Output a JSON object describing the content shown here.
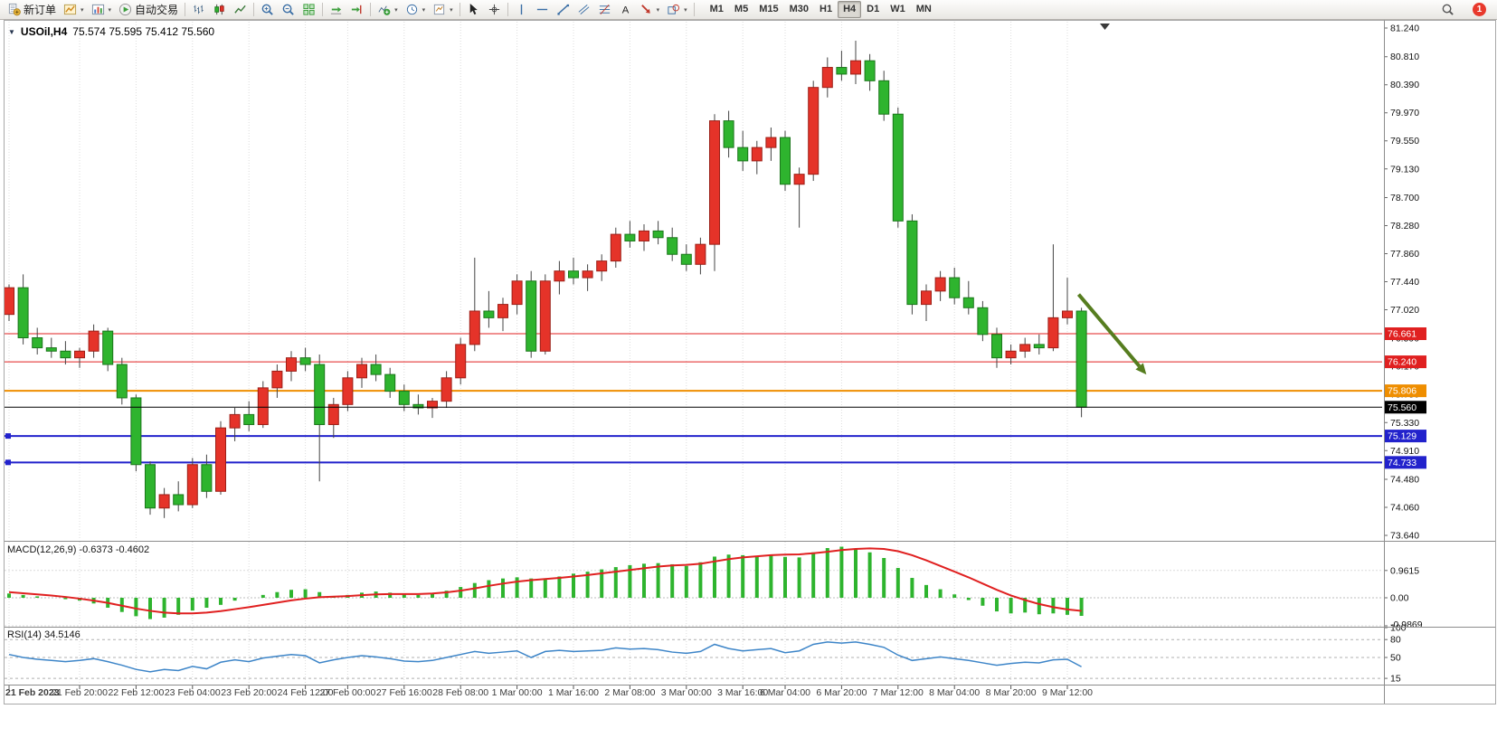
{
  "app": {
    "toolbar": {
      "items": [
        {
          "name": "new-order",
          "icon": "new-order",
          "label": "新订单"
        },
        {
          "name": "new-chart",
          "icon": "new-chart",
          "dropdown": true
        },
        {
          "name": "profiles",
          "icon": "profiles",
          "dropdown": true
        },
        {
          "name": "auto-trading",
          "icon": "auto-trading",
          "label": "自动交易"
        },
        {
          "sep": true
        },
        {
          "name": "chart-bars",
          "icon": "chart-bars"
        },
        {
          "name": "chart-candles",
          "icon": "chart-candles"
        },
        {
          "name": "chart-line",
          "icon": "chart-line"
        },
        {
          "sep": true
        },
        {
          "name": "zoom-in",
          "icon": "zoom-in"
        },
        {
          "name": "zoom-out",
          "icon": "zoom-out"
        },
        {
          "name": "tile-windows",
          "icon": "tile-windows"
        },
        {
          "sep": true
        },
        {
          "name": "auto-scroll",
          "icon": "auto-scroll"
        },
        {
          "name": "chart-shift",
          "icon": "chart-shift"
        },
        {
          "sep": true
        },
        {
          "name": "indicators",
          "icon": "indicators",
          "dropdown": true
        },
        {
          "name": "periods",
          "icon": "periods",
          "dropdown": true
        },
        {
          "name": "templates",
          "icon": "templates",
          "dropdown": true
        },
        {
          "sep": true
        },
        {
          "name": "cursor",
          "icon": "cursor"
        },
        {
          "name": "crosshair",
          "icon": "crosshair"
        },
        {
          "sep": true
        },
        {
          "name": "vertical-line",
          "icon": "vertical-line"
        },
        {
          "name": "horizontal-line",
          "icon": "horizontal-line"
        },
        {
          "name": "trendline",
          "icon": "trendline"
        },
        {
          "name": "equidistant-channel",
          "icon": "channel"
        },
        {
          "name": "fibonacci",
          "icon": "fibonacci"
        },
        {
          "name": "text-label",
          "icon": "text"
        },
        {
          "name": "arrows",
          "icon": "arrow-symbol",
          "dropdown": true
        },
        {
          "name": "shapes",
          "icon": "shapes",
          "dropdown": true
        },
        {
          "sep": true
        }
      ],
      "timeframes": [
        "M1",
        "M5",
        "M15",
        "M30",
        "H1",
        "H4",
        "D1",
        "W1",
        "MN"
      ],
      "active_timeframe": "H4",
      "notification_count": "1"
    },
    "chart_header": {
      "symbol_period": "USOil,H4",
      "ohlc": "75.574 75.595 75.412 75.560"
    }
  },
  "chart_data": {
    "type": "candlestick",
    "symbol": "USOil",
    "period": "H4",
    "y_axis": {
      "max": 81.24,
      "min": 73.64,
      "tick_labels": [
        "81.240",
        "80.810",
        "80.390",
        "79.970",
        "79.550",
        "79.130",
        "78.700",
        "78.280",
        "77.860",
        "77.440",
        "77.020",
        "76.590",
        "76.170",
        "75.750",
        "75.330",
        "74.910",
        "74.480",
        "74.060",
        "73.640"
      ]
    },
    "x_axis": {
      "labels": [
        {
          "i": 0,
          "t": "21 Feb 2023"
        },
        {
          "i": 5,
          "t": "21 Feb 20:00"
        },
        {
          "i": 9,
          "t": "22 Feb 12:00"
        },
        {
          "i": 13,
          "t": "23 Feb 04:00"
        },
        {
          "i": 17,
          "t": "23 Feb 20:00"
        },
        {
          "i": 21,
          "t": "24 Feb 12:00"
        },
        {
          "i": 24,
          "t": "27 Feb 00:00"
        },
        {
          "i": 28,
          "t": "27 Feb 16:00"
        },
        {
          "i": 32,
          "t": "28 Feb 08:00"
        },
        {
          "i": 36,
          "t": "1 Mar 00:00"
        },
        {
          "i": 40,
          "t": "1 Mar 16:00"
        },
        {
          "i": 44,
          "t": "2 Mar 08:00"
        },
        {
          "i": 48,
          "t": "3 Mar 00:00"
        },
        {
          "i": 52,
          "t": "3 Mar 16:00"
        },
        {
          "i": 55,
          "t": "6 Mar 04:00"
        },
        {
          "i": 59,
          "t": "6 Mar 20:00"
        },
        {
          "i": 63,
          "t": "7 Mar 12:00"
        },
        {
          "i": 67,
          "t": "8 Mar 04:00"
        },
        {
          "i": 71,
          "t": "8 Mar 20:00"
        },
        {
          "i": 75,
          "t": "9 Mar 12:00"
        }
      ]
    },
    "candles": [
      [
        76.95,
        77.4,
        76.85,
        77.35
      ],
      [
        77.35,
        77.55,
        76.5,
        76.6
      ],
      [
        76.6,
        76.75,
        76.35,
        76.45
      ],
      [
        76.45,
        76.6,
        76.3,
        76.4
      ],
      [
        76.4,
        76.55,
        76.2,
        76.3
      ],
      [
        76.3,
        76.45,
        76.15,
        76.4
      ],
      [
        76.4,
        76.8,
        76.3,
        76.7
      ],
      [
        76.7,
        76.75,
        76.1,
        76.2
      ],
      [
        76.2,
        76.3,
        75.6,
        75.7
      ],
      [
        75.7,
        75.75,
        74.6,
        74.7
      ],
      [
        74.7,
        74.75,
        73.95,
        74.05
      ],
      [
        74.05,
        74.35,
        73.9,
        74.25
      ],
      [
        74.25,
        74.45,
        74.0,
        74.1
      ],
      [
        74.1,
        74.8,
        74.05,
        74.7
      ],
      [
        74.7,
        74.85,
        74.2,
        74.3
      ],
      [
        74.3,
        75.35,
        74.25,
        75.25
      ],
      [
        75.25,
        75.55,
        75.05,
        75.45
      ],
      [
        75.45,
        75.65,
        75.2,
        75.3
      ],
      [
        75.3,
        75.95,
        75.25,
        75.85
      ],
      [
        75.85,
        76.2,
        75.7,
        76.1
      ],
      [
        76.1,
        76.4,
        75.95,
        76.3
      ],
      [
        76.3,
        76.45,
        76.1,
        76.2
      ],
      [
        76.2,
        76.35,
        74.45,
        75.3
      ],
      [
        75.3,
        75.7,
        75.1,
        75.6
      ],
      [
        75.6,
        76.1,
        75.5,
        76.0
      ],
      [
        76.0,
        76.3,
        75.85,
        76.2
      ],
      [
        76.2,
        76.35,
        75.95,
        76.05
      ],
      [
        76.05,
        76.15,
        75.7,
        75.8
      ],
      [
        75.8,
        75.9,
        75.5,
        75.6
      ],
      [
        75.6,
        75.75,
        75.45,
        75.55
      ],
      [
        75.55,
        75.7,
        75.4,
        75.65
      ],
      [
        75.65,
        76.1,
        75.55,
        76.0
      ],
      [
        76.0,
        76.6,
        75.9,
        76.5
      ],
      [
        76.5,
        77.8,
        76.4,
        77.0
      ],
      [
        77.0,
        77.3,
        76.75,
        76.9
      ],
      [
        76.9,
        77.2,
        76.7,
        77.1
      ],
      [
        77.1,
        77.55,
        76.95,
        77.45
      ],
      [
        77.45,
        77.6,
        76.3,
        76.4
      ],
      [
        76.4,
        77.55,
        76.35,
        77.45
      ],
      [
        77.45,
        77.75,
        77.25,
        77.6
      ],
      [
        77.6,
        77.8,
        77.4,
        77.5
      ],
      [
        77.5,
        77.7,
        77.3,
        77.6
      ],
      [
        77.6,
        77.85,
        77.45,
        77.75
      ],
      [
        77.75,
        78.25,
        77.65,
        78.15
      ],
      [
        78.15,
        78.35,
        77.95,
        78.05
      ],
      [
        78.05,
        78.3,
        77.9,
        78.2
      ],
      [
        78.2,
        78.35,
        78.0,
        78.1
      ],
      [
        78.1,
        78.25,
        77.75,
        77.85
      ],
      [
        77.85,
        78.0,
        77.6,
        77.7
      ],
      [
        77.7,
        78.1,
        77.55,
        78.0
      ],
      [
        78.0,
        79.95,
        77.6,
        79.85
      ],
      [
        79.85,
        80.0,
        79.3,
        79.45
      ],
      [
        79.45,
        79.7,
        79.1,
        79.25
      ],
      [
        79.25,
        79.55,
        79.05,
        79.45
      ],
      [
        79.45,
        79.75,
        79.25,
        79.6
      ],
      [
        79.6,
        79.7,
        78.8,
        78.9
      ],
      [
        78.9,
        79.15,
        78.25,
        79.05
      ],
      [
        79.05,
        80.45,
        78.95,
        80.35
      ],
      [
        80.35,
        80.8,
        80.2,
        80.65
      ],
      [
        80.65,
        80.9,
        80.45,
        80.55
      ],
      [
        80.55,
        81.05,
        80.4,
        80.75
      ],
      [
        80.75,
        80.85,
        80.3,
        80.45
      ],
      [
        80.45,
        80.6,
        79.85,
        79.95
      ],
      [
        79.95,
        80.05,
        78.25,
        78.35
      ],
      [
        78.35,
        78.45,
        76.95,
        77.1
      ],
      [
        77.1,
        77.4,
        76.85,
        77.3
      ],
      [
        77.3,
        77.6,
        77.15,
        77.5
      ],
      [
        77.5,
        77.65,
        77.1,
        77.2
      ],
      [
        77.2,
        77.45,
        76.95,
        77.05
      ],
      [
        77.05,
        77.15,
        76.55,
        76.65
      ],
      [
        76.65,
        76.75,
        76.15,
        76.3
      ],
      [
        76.3,
        76.5,
        76.2,
        76.4
      ],
      [
        76.4,
        76.6,
        76.3,
        76.5
      ],
      [
        76.5,
        76.65,
        76.35,
        76.45
      ],
      [
        76.45,
        78.0,
        76.4,
        76.9
      ],
      [
        76.9,
        77.5,
        76.8,
        77.0
      ],
      [
        77.0,
        77.05,
        75.41,
        75.56
      ]
    ],
    "colors": {
      "up": "#e53329",
      "up_border": "#9c1f17",
      "down": "#2eb42e",
      "down_border": "#1b761b",
      "wick": "#444444",
      "macd_hist": "#2eb42e",
      "macd_signal": "#e02020",
      "rsi": "#3d85c8",
      "grid": "#dcdcdc",
      "arrow": "#567d1f"
    },
    "objects": {
      "hlines": [
        {
          "price": 76.661,
          "label": "76.661",
          "color": "#e02020",
          "width": 1,
          "handle": false
        },
        {
          "price": 76.24,
          "label": "76.240",
          "color": "#e02020",
          "width": 1,
          "handle": false
        },
        {
          "price": 75.806,
          "label": "75.806",
          "color": "#ef8e00",
          "width": 2,
          "handle": false
        },
        {
          "price": 75.129,
          "label": "75.129",
          "color": "#2222cc",
          "width": 2,
          "handle": true
        },
        {
          "price": 74.733,
          "label": "74.733",
          "color": "#2222cc",
          "width": 2,
          "handle": true
        }
      ],
      "bid": {
        "price": 75.56,
        "label": "75.560",
        "color": "#000000"
      },
      "arrow": {
        "from_i": 75.8,
        "from_price": 77.25,
        "to_i": 80.6,
        "to_price": 76.05,
        "color": "#567d1f"
      }
    },
    "macd": {
      "label": "MACD(12,26,9) -0.6373 -0.4602",
      "ticks": [
        {
          "v": 0.9615,
          "label": "0.9615"
        },
        {
          "v": 0,
          "label": "0.00"
        },
        {
          "v": -0.9869,
          "label": "-0.9869"
        }
      ],
      "histogram": [
        0.15,
        0.1,
        0.05,
        0.0,
        -0.05,
        -0.1,
        -0.2,
        -0.35,
        -0.5,
        -0.65,
        -0.75,
        -0.7,
        -0.6,
        -0.45,
        -0.35,
        -0.25,
        -0.1,
        0.0,
        0.1,
        0.2,
        0.28,
        0.3,
        0.2,
        0.05,
        0.1,
        0.18,
        0.22,
        0.18,
        0.12,
        0.1,
        0.15,
        0.25,
        0.38,
        0.52,
        0.62,
        0.68,
        0.72,
        0.68,
        0.66,
        0.75,
        0.85,
        0.92,
        1.0,
        1.08,
        1.15,
        1.2,
        1.22,
        1.18,
        1.12,
        1.25,
        1.45,
        1.52,
        1.5,
        1.46,
        1.5,
        1.44,
        1.42,
        1.6,
        1.75,
        1.8,
        1.72,
        1.6,
        1.4,
        1.05,
        0.7,
        0.45,
        0.3,
        0.12,
        -0.08,
        -0.28,
        -0.48,
        -0.55,
        -0.52,
        -0.58,
        -0.55,
        -0.6,
        -0.6373
      ],
      "signal": [
        0.2,
        0.16,
        0.12,
        0.08,
        0.03,
        -0.03,
        -0.1,
        -0.18,
        -0.28,
        -0.38,
        -0.46,
        -0.52,
        -0.55,
        -0.55,
        -0.52,
        -0.47,
        -0.4,
        -0.33,
        -0.25,
        -0.17,
        -0.09,
        -0.03,
        0.02,
        0.04,
        0.06,
        0.09,
        0.12,
        0.13,
        0.13,
        0.13,
        0.15,
        0.19,
        0.25,
        0.33,
        0.42,
        0.5,
        0.57,
        0.62,
        0.66,
        0.7,
        0.75,
        0.8,
        0.86,
        0.92,
        0.98,
        1.04,
        1.1,
        1.14,
        1.16,
        1.2,
        1.28,
        1.36,
        1.42,
        1.46,
        1.5,
        1.52,
        1.53,
        1.57,
        1.62,
        1.68,
        1.72,
        1.74,
        1.72,
        1.64,
        1.5,
        1.32,
        1.12,
        0.92,
        0.72,
        0.5,
        0.28,
        0.08,
        -0.08,
        -0.22,
        -0.33,
        -0.41,
        -0.4602
      ]
    },
    "rsi": {
      "label": "RSI(14) 34.5146",
      "ticks": [
        {
          "v": 100,
          "label": "100"
        },
        {
          "v": 80,
          "label": "80"
        },
        {
          "v": 50,
          "label": "50"
        },
        {
          "v": 15,
          "label": "15"
        }
      ],
      "levels": [
        80,
        50,
        15
      ],
      "values": [
        55,
        50,
        47,
        45,
        43,
        45,
        48,
        43,
        37,
        30,
        26,
        30,
        28,
        35,
        31,
        42,
        46,
        43,
        49,
        52,
        55,
        53,
        41,
        46,
        50,
        53,
        51,
        48,
        44,
        43,
        45,
        50,
        55,
        60,
        57,
        59,
        61,
        50,
        60,
        62,
        60,
        61,
        62,
        66,
        64,
        65,
        63,
        59,
        57,
        60,
        72,
        65,
        61,
        63,
        65,
        58,
        61,
        72,
        76,
        74,
        76,
        72,
        67,
        54,
        45,
        48,
        51,
        48,
        45,
        41,
        37,
        40,
        42,
        41,
        46,
        47,
        34.5
      ]
    }
  }
}
